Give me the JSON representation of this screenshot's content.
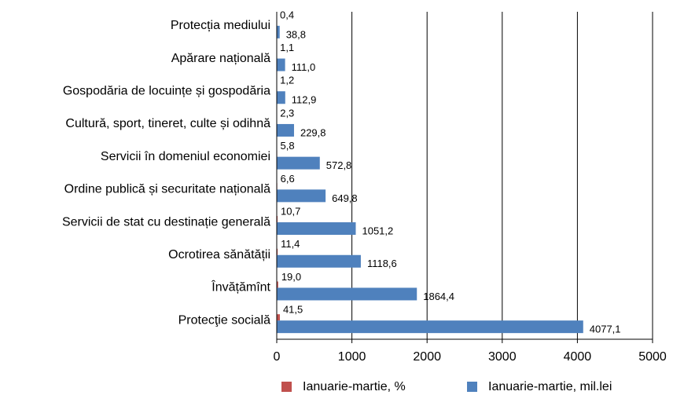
{
  "chart_data": {
    "type": "bar",
    "orientation": "horizontal",
    "categories": [
      "Protecția mediului",
      "Apărare națională",
      "Gospodăria de locuințe și gospodăria",
      "Cultură, sport, tineret, culte și odihnă",
      "Servicii în domeniul economiei",
      "Ordine publică și securitate națională",
      "Servicii de stat cu destinație generală",
      "Ocrotirea sănătății",
      "Învățămînt",
      "Protecţie socială"
    ],
    "series": [
      {
        "name": "Ianuarie-martie, %",
        "color": "#c0504d",
        "values": [
          0.4,
          1.1,
          1.2,
          2.3,
          5.8,
          6.6,
          10.7,
          11.4,
          19.0,
          41.5
        ],
        "value_labels": [
          "0,4",
          "1,1",
          "1,2",
          "2,3",
          "5,8",
          "6,6",
          "10,7",
          "11,4",
          "19,0",
          "41,5"
        ]
      },
      {
        "name": "Ianuarie-martie, mil.lei",
        "color": "#4f81bd",
        "values": [
          38.8,
          111.0,
          112.9,
          229.8,
          572.8,
          649.8,
          1051.2,
          1118.6,
          1864.4,
          4077.1
        ],
        "value_labels": [
          "38,8",
          "111,0",
          "112,9",
          "229,8",
          "572,8",
          "649,8",
          "1051,2",
          "1118,6",
          "1864,4",
          "4077,1"
        ]
      }
    ],
    "xlim": [
      0,
      5000
    ],
    "xticks": [
      0,
      1000,
      2000,
      3000,
      4000,
      5000
    ],
    "grid": true,
    "legend": "bottom"
  }
}
